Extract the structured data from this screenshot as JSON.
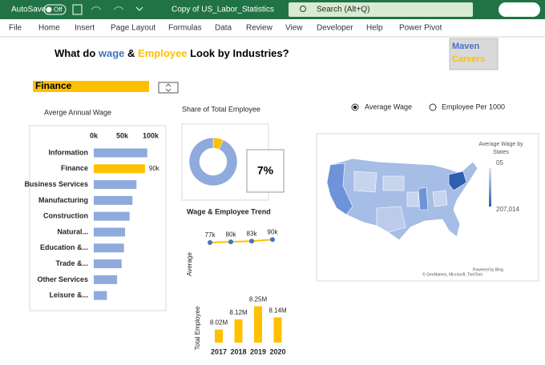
{
  "ui": {
    "title_bar": {
      "autosave": "AutoSave",
      "autosave_state": "Off",
      "file_name": "Copy of US_Labor_Statistics",
      "search": "Search (Alt+Q)"
    },
    "menu": [
      "File",
      "Home",
      "Insert",
      "Page Layout",
      "Formulas",
      "Data",
      "Review",
      "View",
      "Developer",
      "Help",
      "Power Pivot"
    ],
    "title_parts": [
      "What do ",
      "wage",
      " & ",
      "Employee",
      " Look by Industries?"
    ],
    "logo": [
      "Maven",
      "Careers"
    ],
    "industry_selector": "Finance",
    "options": {
      "items": [
        "Average Wage",
        "Employee Per 1000"
      ],
      "selected": 0
    },
    "map": {
      "legend_title": "Average Wage by States",
      "legend_min": "05",
      "legend_max": "207,014",
      "credits": [
        "Powered by Bing",
        "© GeoNames, Microsoft, TomTom"
      ]
    }
  },
  "chart_data": [
    {
      "type": "hbar",
      "title": "Averge Annual Wage",
      "categories": [
        "Information",
        "Finance",
        "Business Services",
        "Manufacturing",
        "Construction",
        "Natural...",
        "Education &...",
        "Trade &...",
        "Other Services",
        "Leisure &..."
      ],
      "values": [
        94000,
        90000,
        75000,
        68000,
        63000,
        55000,
        53000,
        49000,
        41000,
        23000
      ],
      "value_labels": [
        null,
        "90k",
        null,
        null,
        null,
        null,
        null,
        null,
        null,
        null
      ],
      "color": "#8faadc",
      "highlight_index": 1,
      "highlight_color": "#ffc000",
      "xlim": [
        0,
        100000
      ],
      "xticks": [
        {
          "value": 0,
          "label": "0k"
        },
        {
          "value": 50000,
          "label": "50k"
        },
        {
          "value": 100000,
          "label": "100k"
        }
      ]
    },
    {
      "type": "pie",
      "title": "Share of Total Employee",
      "donut": true,
      "values": [
        7,
        93
      ],
      "value_labels": [
        "7%",
        null
      ],
      "colors": [
        "#ffc000",
        "#8faadc"
      ]
    },
    {
      "type": "line",
      "title": "Wage & Employee Trend",
      "y_label": "Average",
      "values": [
        77000,
        80000,
        83000,
        90000
      ],
      "value_labels": [
        "77k",
        "80k",
        "83k",
        "90k"
      ],
      "color": "#ffc000",
      "marker_color": "#4472c4",
      "ylim": [
        0,
        140000
      ]
    },
    {
      "type": "bar",
      "y_label": "Total Employee",
      "categories": [
        "2017",
        "2018",
        "2019",
        "2020"
      ],
      "values": [
        8020000,
        8120000,
        8250000,
        8140000
      ],
      "value_labels": [
        "8.02M",
        "8.12M",
        "8.25M",
        "8.14M"
      ],
      "color": "#ffc000",
      "ylim": [
        7890000,
        8350000
      ]
    }
  ]
}
